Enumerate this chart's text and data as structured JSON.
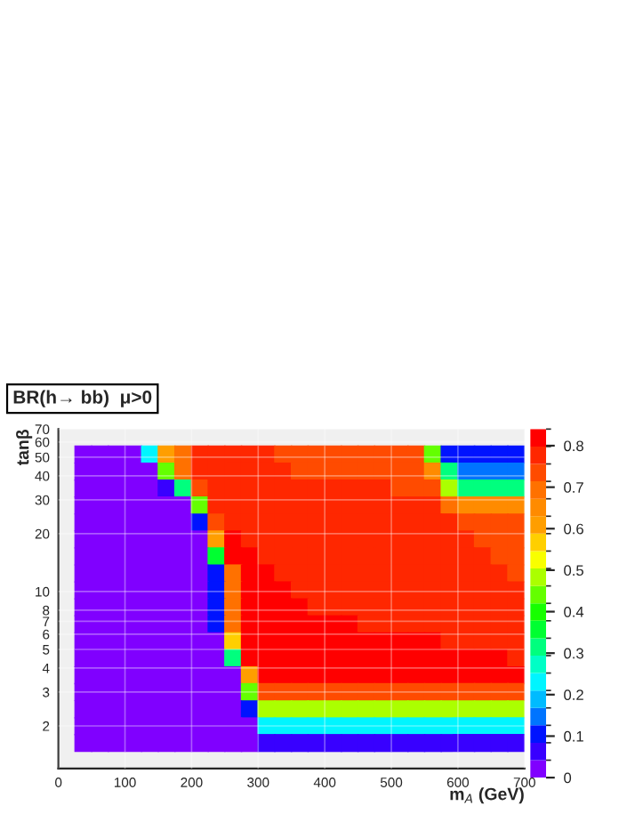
{
  "chart_data": {
    "type": "scatter",
    "title": "BR(h→ bb)  μ>0",
    "xlabel": "m$_{A}$ (GeV)",
    "ylabel": "tanβ",
    "marker": "square",
    "x": [
      37.5,
      62.5,
      87.5,
      112.5,
      137.5,
      162.5,
      187.5,
      212.5,
      237.5,
      262.5,
      287.5,
      312.5,
      337.5,
      362.5,
      387.5,
      412.5,
      437.5,
      462.5,
      487.5,
      512.5,
      537.5,
      562.5,
      587.5,
      612.5,
      637.5,
      662.5,
      687.5,
      37.5,
      62.5,
      87.5,
      112.5,
      137.5,
      162.5,
      187.5,
      212.5,
      237.5,
      262.5,
      287.5,
      312.5,
      337.5,
      362.5,
      387.5,
      412.5,
      437.5,
      462.5,
      487.5,
      512.5,
      537.5,
      562.5,
      587.5,
      612.5,
      637.5,
      662.5,
      687.5,
      37.5,
      62.5,
      87.5,
      112.5,
      137.5,
      162.5,
      187.5,
      212.5,
      237.5,
      262.5,
      287.5,
      312.5,
      337.5,
      362.5,
      387.5,
      412.5,
      437.5,
      462.5,
      487.5,
      512.5,
      537.5,
      562.5,
      587.5,
      612.5,
      637.5,
      662.5,
      687.5,
      37.5,
      62.5,
      87.5,
      112.5,
      137.5,
      162.5,
      187.5,
      212.5,
      237.5,
      262.5,
      287.5,
      312.5,
      337.5,
      362.5,
      387.5,
      412.5,
      437.5,
      462.5,
      487.5,
      512.5,
      537.5,
      562.5,
      587.5,
      612.5,
      637.5,
      662.5,
      687.5,
      37.5,
      62.5,
      87.5,
      112.5,
      137.5,
      162.5,
      187.5,
      212.5,
      237.5,
      262.5,
      287.5,
      312.5,
      337.5,
      362.5,
      387.5,
      412.5,
      437.5,
      462.5,
      487.5,
      512.5,
      537.5,
      562.5,
      587.5,
      612.5,
      637.5,
      662.5,
      687.5,
      37.5,
      62.5,
      87.5,
      112.5,
      137.5,
      162.5,
      187.5,
      212.5,
      237.5,
      262.5,
      287.5,
      312.5,
      337.5,
      362.5,
      387.5,
      412.5,
      437.5,
      462.5,
      487.5,
      512.5,
      537.5,
      562.5,
      587.5,
      612.5,
      637.5,
      662.5,
      687.5,
      37.5,
      62.5,
      87.5,
      112.5,
      137.5,
      162.5,
      187.5,
      212.5,
      237.5,
      262.5,
      287.5,
      312.5,
      337.5,
      362.5,
      387.5,
      412.5,
      437.5,
      462.5,
      487.5,
      512.5,
      537.5,
      562.5,
      587.5,
      612.5,
      637.5,
      662.5,
      687.5,
      37.5,
      62.5,
      87.5,
      112.5,
      137.5,
      162.5,
      187.5,
      212.5,
      237.5,
      262.5,
      287.5,
      312.5,
      337.5,
      362.5,
      387.5,
      412.5,
      437.5,
      462.5,
      487.5,
      512.5,
      537.5,
      562.5,
      587.5,
      612.5,
      637.5,
      662.5,
      687.5,
      37.5,
      62.5,
      87.5,
      112.5,
      137.5,
      162.5,
      187.5,
      212.5,
      237.5,
      262.5,
      287.5,
      312.5,
      337.5,
      362.5,
      387.5,
      412.5,
      437.5,
      462.5,
      487.5,
      512.5,
      537.5,
      562.5,
      587.5,
      612.5,
      637.5,
      662.5,
      687.5,
      37.5,
      62.5,
      87.5,
      112.5,
      137.5,
      162.5,
      187.5,
      212.5,
      237.5,
      262.5,
      287.5,
      312.5,
      337.5,
      362.5,
      387.5,
      412.5,
      437.5,
      462.5,
      487.5,
      512.5,
      537.5,
      562.5,
      587.5,
      612.5,
      637.5,
      662.5,
      687.5,
      37.5,
      62.5,
      87.5,
      112.5,
      137.5,
      162.5,
      187.5,
      212.5,
      237.5,
      262.5,
      287.5,
      312.5,
      337.5,
      362.5,
      387.5,
      412.5,
      437.5,
      462.5,
      487.5,
      512.5,
      537.5,
      562.5,
      587.5,
      612.5,
      637.5,
      662.5,
      687.5,
      37.5,
      62.5,
      87.5,
      112.5,
      137.5,
      162.5,
      187.5,
      212.5,
      237.5,
      262.5,
      287.5,
      312.5,
      337.5,
      362.5,
      387.5,
      412.5,
      437.5,
      462.5,
      487.5,
      512.5,
      537.5,
      562.5,
      587.5,
      612.5,
      637.5,
      662.5,
      687.5,
      37.5,
      62.5,
      87.5,
      112.5,
      137.5,
      162.5,
      187.5,
      212.5,
      237.5,
      262.5,
      287.5,
      312.5,
      337.5,
      362.5,
      387.5,
      412.5,
      437.5,
      462.5,
      487.5,
      512.5,
      537.5,
      562.5,
      587.5,
      612.5,
      637.5,
      662.5,
      687.5,
      37.5,
      62.5,
      87.5,
      112.5,
      137.5,
      162.5,
      187.5,
      212.5,
      237.5,
      262.5,
      287.5,
      312.5,
      337.5,
      362.5,
      387.5,
      412.5,
      437.5,
      462.5,
      487.5,
      512.5,
      537.5,
      562.5,
      587.5,
      612.5,
      637.5,
      662.5,
      687.5,
      37.5,
      62.5,
      87.5,
      112.5,
      137.5,
      162.5,
      187.5,
      212.5,
      237.5,
      262.5,
      287.5,
      312.5,
      337.5,
      362.5,
      387.5,
      412.5,
      437.5,
      462.5,
      487.5,
      512.5,
      537.5,
      562.5,
      587.5,
      612.5,
      637.5,
      662.5,
      687.5,
      37.5,
      62.5,
      87.5,
      112.5,
      137.5,
      162.5,
      187.5,
      212.5,
      237.5,
      262.5,
      287.5,
      312.5,
      337.5,
      362.5,
      387.5,
      412.5,
      437.5,
      462.5,
      487.5,
      512.5,
      537.5,
      562.5,
      587.5,
      612.5,
      637.5,
      662.5,
      687.5,
      37.5,
      62.5,
      87.5,
      112.5,
      137.5,
      162.5,
      187.5,
      212.5,
      237.5,
      262.5,
      287.5,
      312.5,
      337.5,
      362.5,
      387.5,
      412.5,
      437.5,
      462.5,
      487.5,
      512.5,
      537.5,
      562.5,
      587.5,
      612.5,
      637.5,
      662.5,
      687.5,
      37.5,
      62.5,
      87.5,
      112.5,
      137.5,
      162.5,
      187.5,
      212.5,
      237.5,
      262.5,
      287.5,
      312.5,
      337.5,
      362.5,
      387.5,
      412.5,
      437.5,
      462.5,
      487.5,
      512.5,
      537.5,
      562.5,
      587.5,
      612.5,
      637.5,
      662.5,
      687.5
    ],
    "values": [
      51.6,
      51.6,
      51.6,
      51.6,
      51.6,
      51.6,
      51.6,
      51.6,
      51.6,
      51.6,
      51.6,
      51.6,
      51.6,
      51.6,
      51.6,
      51.6,
      51.6,
      51.6,
      51.6,
      51.6,
      51.6,
      51.6,
      51.6,
      51.6,
      51.6,
      51.6,
      51.6,
      42.1,
      42.1,
      42.1,
      42.1,
      42.1,
      42.1,
      42.1,
      42.1,
      42.1,
      42.1,
      42.1,
      42.1,
      42.1,
      42.1,
      42.1,
      42.1,
      42.1,
      42.1,
      42.1,
      42.1,
      42.1,
      42.1,
      42.1,
      42.1,
      42.1,
      42.1,
      42.1,
      34.38,
      34.38,
      34.38,
      34.38,
      34.38,
      34.38,
      34.38,
      34.38,
      34.38,
      34.38,
      34.38,
      34.38,
      34.38,
      34.38,
      34.38,
      34.38,
      34.38,
      34.38,
      34.38,
      34.38,
      34.38,
      34.38,
      34.38,
      34.38,
      34.38,
      34.38,
      34.38,
      28.05,
      28.05,
      28.05,
      28.05,
      28.05,
      28.05,
      28.05,
      28.05,
      28.05,
      28.05,
      28.05,
      28.05,
      28.05,
      28.05,
      28.05,
      28.05,
      28.05,
      28.05,
      28.05,
      28.05,
      28.05,
      28.05,
      28.05,
      28.05,
      28.05,
      28.05,
      28.05,
      22.89,
      22.89,
      22.89,
      22.89,
      22.89,
      22.89,
      22.89,
      22.89,
      22.89,
      22.89,
      22.89,
      22.89,
      22.89,
      22.89,
      22.89,
      22.89,
      22.89,
      22.89,
      22.89,
      22.89,
      22.89,
      22.89,
      22.89,
      22.89,
      22.89,
      22.89,
      22.89,
      18.68,
      18.68,
      18.68,
      18.68,
      18.68,
      18.68,
      18.68,
      18.68,
      18.68,
      18.68,
      18.68,
      18.68,
      18.68,
      18.68,
      18.68,
      18.68,
      18.68,
      18.68,
      18.68,
      18.68,
      18.68,
      18.68,
      18.68,
      18.68,
      18.68,
      18.68,
      18.68,
      15.24,
      15.24,
      15.24,
      15.24,
      15.24,
      15.24,
      15.24,
      15.24,
      15.24,
      15.24,
      15.24,
      15.24,
      15.24,
      15.24,
      15.24,
      15.24,
      15.24,
      15.24,
      15.24,
      15.24,
      15.24,
      15.24,
      15.24,
      15.24,
      15.24,
      15.24,
      15.24,
      12.43,
      12.43,
      12.43,
      12.43,
      12.43,
      12.43,
      12.43,
      12.43,
      12.43,
      12.43,
      12.43,
      12.43,
      12.43,
      12.43,
      12.43,
      12.43,
      12.43,
      12.43,
      12.43,
      12.43,
      12.43,
      12.43,
      12.43,
      12.43,
      12.43,
      12.43,
      12.43,
      10.15,
      10.15,
      10.15,
      10.15,
      10.15,
      10.15,
      10.15,
      10.15,
      10.15,
      10.15,
      10.15,
      10.15,
      10.15,
      10.15,
      10.15,
      10.15,
      10.15,
      10.15,
      10.15,
      10.15,
      10.15,
      10.15,
      10.15,
      10.15,
      10.15,
      10.15,
      10.15,
      8.28,
      8.28,
      8.28,
      8.28,
      8.28,
      8.28,
      8.28,
      8.28,
      8.28,
      8.28,
      8.28,
      8.28,
      8.28,
      8.28,
      8.28,
      8.28,
      8.28,
      8.28,
      8.28,
      8.28,
      8.28,
      8.28,
      8.28,
      8.28,
      8.28,
      8.28,
      8.28,
      6.76,
      6.76,
      6.76,
      6.76,
      6.76,
      6.76,
      6.76,
      6.76,
      6.76,
      6.76,
      6.76,
      6.76,
      6.76,
      6.76,
      6.76,
      6.76,
      6.76,
      6.76,
      6.76,
      6.76,
      6.76,
      6.76,
      6.76,
      6.76,
      6.76,
      6.76,
      6.76,
      5.51,
      5.51,
      5.51,
      5.51,
      5.51,
      5.51,
      5.51,
      5.51,
      5.51,
      5.51,
      5.51,
      5.51,
      5.51,
      5.51,
      5.51,
      5.51,
      5.51,
      5.51,
      5.51,
      5.51,
      5.51,
      5.51,
      5.51,
      5.51,
      5.51,
      5.51,
      5.51,
      4.5,
      4.5,
      4.5,
      4.5,
      4.5,
      4.5,
      4.5,
      4.5,
      4.5,
      4.5,
      4.5,
      4.5,
      4.5,
      4.5,
      4.5,
      4.5,
      4.5,
      4.5,
      4.5,
      4.5,
      4.5,
      4.5,
      4.5,
      4.5,
      4.5,
      4.5,
      4.5,
      3.67,
      3.67,
      3.67,
      3.67,
      3.67,
      3.67,
      3.67,
      3.67,
      3.67,
      3.67,
      3.67,
      3.67,
      3.67,
      3.67,
      3.67,
      3.67,
      3.67,
      3.67,
      3.67,
      3.67,
      3.67,
      3.67,
      3.67,
      3.67,
      3.67,
      3.67,
      3.67,
      3.0,
      3.0,
      3.0,
      3.0,
      3.0,
      3.0,
      3.0,
      3.0,
      3.0,
      3.0,
      3.0,
      3.0,
      3.0,
      3.0,
      3.0,
      3.0,
      3.0,
      3.0,
      3.0,
      3.0,
      3.0,
      3.0,
      3.0,
      3.0,
      3.0,
      3.0,
      3.0,
      2.44,
      2.44,
      2.44,
      2.44,
      2.44,
      2.44,
      2.44,
      2.44,
      2.44,
      2.44,
      2.44,
      2.44,
      2.44,
      2.44,
      2.44,
      2.44,
      2.44,
      2.44,
      2.44,
      2.44,
      2.44,
      2.44,
      2.44,
      2.44,
      2.44,
      2.44,
      2.44,
      1.99,
      1.99,
      1.99,
      1.99,
      1.99,
      1.99,
      1.99,
      1.99,
      1.99,
      1.99,
      1.99,
      1.99,
      1.99,
      1.99,
      1.99,
      1.99,
      1.99,
      1.99,
      1.99,
      1.99,
      1.99,
      1.99,
      1.99,
      1.99,
      1.99,
      1.99,
      1.99,
      1.63,
      1.63,
      1.63,
      1.63,
      1.63,
      1.63,
      1.63,
      1.63,
      1.63,
      1.63,
      1.63,
      1.63,
      1.63,
      1.63,
      1.63,
      1.63,
      1.63,
      1.63,
      1.63,
      1.63,
      1.63,
      1.63,
      1.63,
      1.63,
      1.63,
      1.63,
      1.63
    ],
    "cvalues": [
      0.02,
      0.02,
      0.02,
      0.02,
      0.25,
      0.6,
      0.7,
      0.77,
      0.77,
      0.77,
      0.77,
      0.77,
      0.72,
      0.72,
      0.72,
      0.72,
      0.72,
      0.72,
      0.72,
      0.72,
      0.72,
      0.45,
      0.1,
      0.1,
      0.1,
      0.1,
      0.1,
      0.02,
      0.02,
      0.02,
      0.02,
      0.02,
      0.42,
      0.7,
      0.77,
      0.77,
      0.77,
      0.77,
      0.77,
      0.77,
      0.72,
      0.72,
      0.72,
      0.72,
      0.72,
      0.72,
      0.72,
      0.72,
      0.65,
      0.3,
      0.15,
      0.15,
      0.15,
      0.15,
      0.02,
      0.02,
      0.02,
      0.02,
      0.02,
      0.05,
      0.3,
      0.75,
      0.77,
      0.77,
      0.77,
      0.77,
      0.77,
      0.77,
      0.77,
      0.77,
      0.77,
      0.77,
      0.77,
      0.72,
      0.72,
      0.72,
      0.5,
      0.3,
      0.3,
      0.3,
      0.3,
      0.02,
      0.02,
      0.02,
      0.02,
      0.02,
      0.02,
      0.02,
      0.42,
      0.77,
      0.77,
      0.77,
      0.77,
      0.77,
      0.77,
      0.77,
      0.77,
      0.77,
      0.77,
      0.77,
      0.77,
      0.77,
      0.77,
      0.68,
      0.65,
      0.65,
      0.65,
      0.65,
      0.02,
      0.02,
      0.02,
      0.02,
      0.02,
      0.02,
      0.02,
      0.1,
      0.75,
      0.77,
      0.77,
      0.77,
      0.77,
      0.77,
      0.77,
      0.77,
      0.77,
      0.77,
      0.77,
      0.77,
      0.77,
      0.77,
      0.77,
      0.72,
      0.72,
      0.72,
      0.72,
      0.02,
      0.02,
      0.02,
      0.02,
      0.02,
      0.02,
      0.02,
      0.02,
      0.6,
      0.82,
      0.77,
      0.77,
      0.77,
      0.77,
      0.77,
      0.77,
      0.77,
      0.77,
      0.77,
      0.77,
      0.77,
      0.77,
      0.77,
      0.77,
      0.72,
      0.72,
      0.72,
      0.02,
      0.02,
      0.02,
      0.02,
      0.02,
      0.02,
      0.02,
      0.02,
      0.35,
      0.82,
      0.82,
      0.77,
      0.77,
      0.77,
      0.77,
      0.77,
      0.77,
      0.77,
      0.77,
      0.77,
      0.77,
      0.77,
      0.77,
      0.77,
      0.77,
      0.72,
      0.72,
      0.02,
      0.02,
      0.02,
      0.02,
      0.02,
      0.02,
      0.02,
      0.02,
      0.1,
      0.7,
      0.82,
      0.82,
      0.77,
      0.77,
      0.77,
      0.77,
      0.77,
      0.77,
      0.77,
      0.77,
      0.77,
      0.77,
      0.77,
      0.77,
      0.77,
      0.77,
      0.72,
      0.02,
      0.02,
      0.02,
      0.02,
      0.02,
      0.02,
      0.02,
      0.02,
      0.1,
      0.7,
      0.82,
      0.82,
      0.82,
      0.77,
      0.77,
      0.77,
      0.77,
      0.77,
      0.77,
      0.77,
      0.77,
      0.77,
      0.77,
      0.77,
      0.77,
      0.77,
      0.77,
      0.02,
      0.02,
      0.02,
      0.02,
      0.02,
      0.02,
      0.02,
      0.02,
      0.1,
      0.7,
      0.82,
      0.82,
      0.82,
      0.82,
      0.77,
      0.77,
      0.77,
      0.77,
      0.77,
      0.77,
      0.77,
      0.77,
      0.77,
      0.77,
      0.77,
      0.77,
      0.77,
      0.02,
      0.02,
      0.02,
      0.02,
      0.02,
      0.02,
      0.02,
      0.02,
      0.1,
      0.7,
      0.82,
      0.82,
      0.82,
      0.82,
      0.82,
      0.82,
      0.8,
      0.77,
      0.77,
      0.77,
      0.77,
      0.77,
      0.77,
      0.77,
      0.77,
      0.77,
      0.77,
      0.02,
      0.02,
      0.02,
      0.02,
      0.02,
      0.02,
      0.02,
      0.02,
      0.02,
      0.55,
      0.82,
      0.82,
      0.82,
      0.82,
      0.82,
      0.82,
      0.82,
      0.82,
      0.82,
      0.82,
      0.82,
      0.82,
      0.78,
      0.77,
      0.77,
      0.77,
      0.77,
      0.02,
      0.02,
      0.02,
      0.02,
      0.02,
      0.02,
      0.02,
      0.02,
      0.02,
      0.3,
      0.82,
      0.82,
      0.82,
      0.82,
      0.82,
      0.82,
      0.82,
      0.82,
      0.82,
      0.82,
      0.82,
      0.82,
      0.82,
      0.82,
      0.82,
      0.82,
      0.77,
      0.02,
      0.02,
      0.02,
      0.02,
      0.02,
      0.02,
      0.02,
      0.02,
      0.02,
      0.02,
      0.6,
      0.82,
      0.82,
      0.82,
      0.82,
      0.82,
      0.82,
      0.82,
      0.82,
      0.82,
      0.82,
      0.82,
      0.82,
      0.82,
      0.82,
      0.82,
      0.82,
      0.02,
      0.02,
      0.02,
      0.02,
      0.02,
      0.02,
      0.02,
      0.02,
      0.02,
      0.02,
      0.42,
      0.72,
      0.72,
      0.72,
      0.72,
      0.72,
      0.72,
      0.72,
      0.72,
      0.72,
      0.72,
      0.72,
      0.72,
      0.72,
      0.72,
      0.72,
      0.72,
      0.02,
      0.02,
      0.02,
      0.02,
      0.02,
      0.02,
      0.02,
      0.02,
      0.02,
      0.02,
      0.12,
      0.5,
      0.5,
      0.5,
      0.5,
      0.5,
      0.5,
      0.5,
      0.5,
      0.5,
      0.5,
      0.5,
      0.5,
      0.5,
      0.5,
      0.5,
      0.5,
      0.02,
      0.02,
      0.02,
      0.02,
      0.02,
      0.02,
      0.02,
      0.02,
      0.02,
      0.02,
      0.02,
      0.25,
      0.25,
      0.25,
      0.25,
      0.25,
      0.25,
      0.25,
      0.25,
      0.25,
      0.25,
      0.25,
      0.25,
      0.25,
      0.25,
      0.25,
      0.25,
      0.02,
      0.02,
      0.02,
      0.02,
      0.02,
      0.02,
      0.02,
      0.02,
      0.02,
      0.02,
      0.02,
      0.08,
      0.08,
      0.08,
      0.08,
      0.08,
      0.08,
      0.08,
      0.08,
      0.08,
      0.08,
      0.08,
      0.08,
      0.08,
      0.08,
      0.08,
      0.08
    ],
    "xlim": [
      0,
      700
    ],
    "xticks": [
      0,
      100,
      200,
      300,
      400,
      500,
      600,
      700
    ],
    "ylim": [
      1.2,
      70
    ],
    "yticks": [
      2,
      3,
      4,
      5,
      6,
      7,
      8,
      10,
      20,
      30,
      40,
      50,
      60,
      70
    ],
    "log": "y",
    "clim": [
      0,
      0.84
    ],
    "cticks": [
      0,
      0.1,
      0.2,
      0.3,
      0.4,
      0.5,
      0.6,
      0.7,
      0.8
    ],
    "grid": true
  }
}
